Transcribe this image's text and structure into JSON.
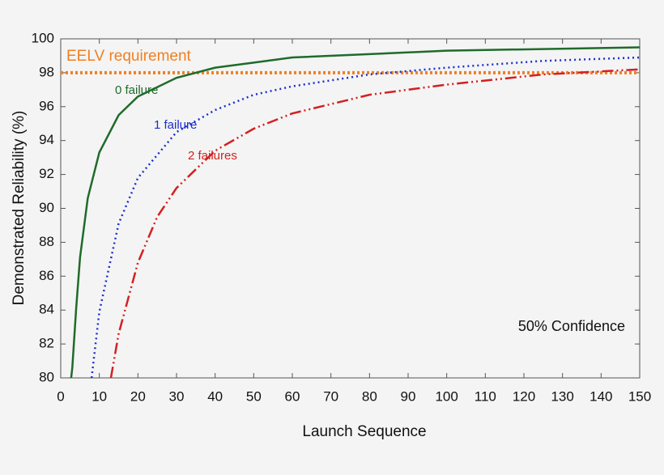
{
  "chart_data": {
    "type": "line",
    "xlabel": "Launch Sequence",
    "ylabel": "Demonstrated Reliability (%)",
    "annotation": "50% Confidence",
    "xlim": [
      0,
      150
    ],
    "xticks": [
      0,
      10,
      20,
      30,
      40,
      50,
      60,
      70,
      80,
      90,
      100,
      110,
      120,
      130,
      140,
      150
    ],
    "ylim": [
      80,
      100
    ],
    "yticks": [
      80,
      82,
      84,
      86,
      88,
      90,
      92,
      94,
      96,
      98,
      100
    ],
    "reference": {
      "label": "EELV requirement",
      "value": 98,
      "color": "#f07f22",
      "style": "dotted"
    },
    "series": [
      {
        "name": "0 failure",
        "color": "#1f6b2a",
        "style": "solid",
        "x": [
          2.7,
          3,
          4,
          5,
          7,
          10,
          15,
          20,
          30,
          40,
          50,
          60,
          80,
          100,
          125,
          150
        ],
        "values": [
          80,
          80.6,
          84.1,
          87.1,
          90.6,
          93.3,
          95.5,
          96.6,
          97.7,
          98.3,
          98.6,
          98.9,
          99.1,
          99.3,
          99.4,
          99.5
        ]
      },
      {
        "name": "1 failure",
        "color": "#1d2fc9",
        "style": "dotted",
        "x": [
          8,
          10,
          15,
          20,
          30,
          40,
          50,
          60,
          80,
          100,
          125,
          150
        ],
        "values": [
          80,
          83.9,
          89.1,
          91.8,
          94.5,
          95.8,
          96.7,
          97.2,
          97.9,
          98.3,
          98.7,
          98.9
        ]
      },
      {
        "name": "2 failures",
        "color": "#d42020",
        "style": "dashdotdot",
        "x": [
          13,
          15,
          20,
          25,
          30,
          40,
          50,
          60,
          80,
          100,
          125,
          150
        ],
        "values": [
          80,
          82.6,
          86.8,
          89.5,
          91.2,
          93.4,
          94.7,
          95.6,
          96.7,
          97.3,
          97.9,
          98.2
        ]
      }
    ]
  }
}
